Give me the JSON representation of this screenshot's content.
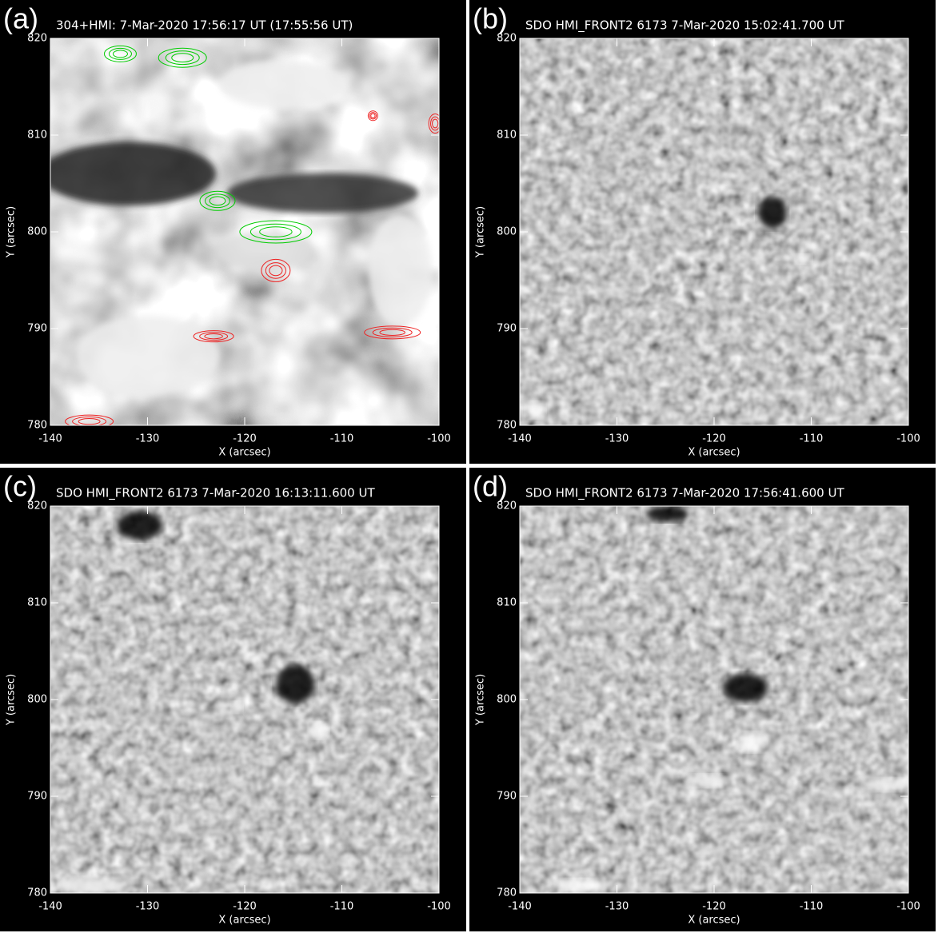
{
  "chart_data": [
    {
      "type": "image",
      "panel_label": "(a)",
      "title": "304+HMI:  7-Mar-2020 17:56:17 UT (17:55:56 UT)",
      "xlabel": "X (arcsec)",
      "ylabel": "Y (arcsec)",
      "xlim": [
        -140,
        -100
      ],
      "ylim": [
        780,
        820
      ],
      "xticks": [
        -140,
        -130,
        -120,
        -110,
        -100
      ],
      "yticks": [
        780,
        790,
        800,
        810,
        820
      ]
    },
    {
      "type": "image",
      "panel_label": "(b)",
      "title": "SDO HMI_FRONT2 6173   7-Mar-2020 15:02:41.700 UT",
      "xlabel": "X (arcsec)",
      "ylabel": "Y (arcsec)",
      "xlim": [
        -140,
        -100
      ],
      "ylim": [
        780,
        820
      ],
      "xticks": [
        -140,
        -130,
        -120,
        -110,
        -100
      ],
      "yticks": [
        780,
        790,
        800,
        810,
        820
      ]
    },
    {
      "type": "image",
      "panel_label": "(c)",
      "title": "SDO HMI_FRONT2 6173   7-Mar-2020 16:13:11.600 UT",
      "xlabel": "X (arcsec)",
      "ylabel": "Y (arcsec)",
      "xlim": [
        -140,
        -100
      ],
      "ylim": [
        780,
        820
      ],
      "xticks": [
        -140,
        -130,
        -120,
        -110,
        -100
      ],
      "yticks": [
        780,
        790,
        800,
        810,
        820
      ]
    },
    {
      "type": "image",
      "panel_label": "(d)",
      "title": "SDO HMI_FRONT2 6173   7-Mar-2020 17:56:41.600 UT",
      "xlabel": "X (arcsec)",
      "ylabel": "Y (arcsec)",
      "xlim": [
        -140,
        -100
      ],
      "ylim": [
        780,
        820
      ],
      "xticks": [
        -140,
        -130,
        -120,
        -110,
        -100
      ],
      "yticks": [
        780,
        790,
        800,
        810,
        820
      ]
    }
  ]
}
